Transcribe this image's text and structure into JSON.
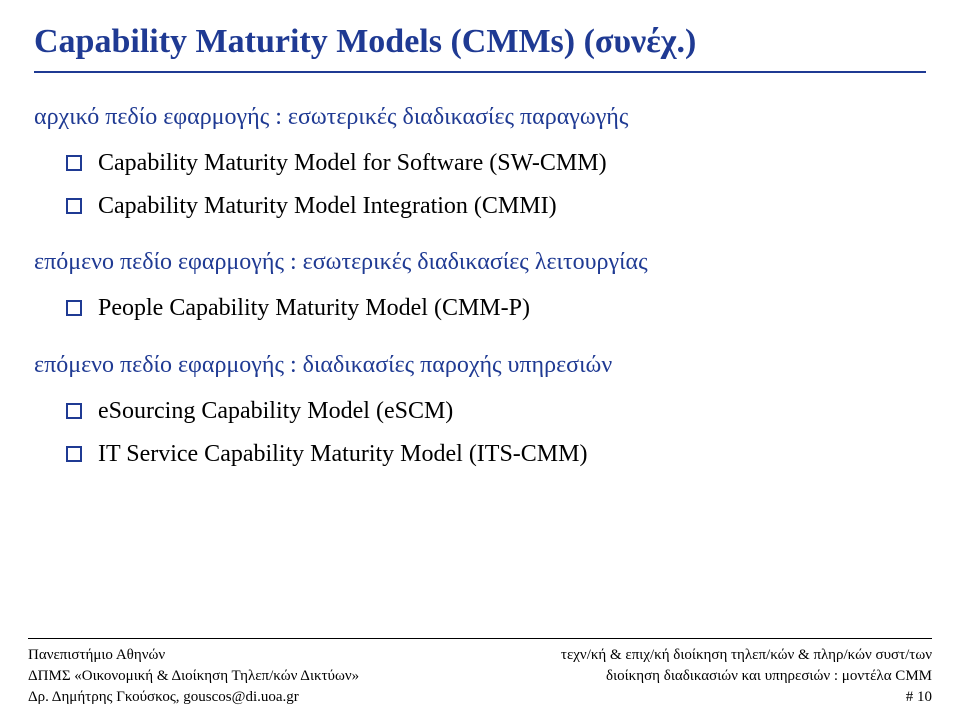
{
  "slide": {
    "title": "Capability Maturity Models (CMMs) (συνέχ.)",
    "title_color": "#1f3a93",
    "underline_color": "#1f3a93",
    "background_color": "#ffffff",
    "body_text_color": "#000000",
    "title_fontsize": 34,
    "intro_fontsize": 24,
    "bullet_fontsize": 24,
    "sections": [
      {
        "intro": "αρχικό πεδίο εφαρμογής : εσωτερικές διαδικασίες παραγωγής",
        "items": [
          "Capability Maturity Model for Software (SW-CMM)",
          "Capability Maturity Model Integration (CMMI)"
        ]
      },
      {
        "intro": "επόμενο πεδίο εφαρμογής : εσωτερικές διαδικασίες λειτουργίας",
        "items": [
          "People Capability Maturity Model (CMM-P)"
        ]
      },
      {
        "intro": "επόμενο πεδίο εφαρμογής : διαδικασίες παροχής υπηρεσιών",
        "items": [
          "eSourcing Capability Model (eSCM)",
          "IT Service Capability Maturity Model (ITS-CMM)"
        ]
      }
    ]
  },
  "footer": {
    "left_lines": [
      "Πανεπιστήμιο Αθηνών",
      "ΔΠΜΣ «Οικονομική & Διοίκηση Τηλεπ/κών Δικτύων»",
      "Δρ. Δημήτρης Γκούσκος, gouscos@di.uoa.gr"
    ],
    "right_lines": [
      "τεχν/κή & επιχ/κή διοίκηση τηλεπ/κών & πληρ/κών συστ/των",
      "διοίκηση διαδικασιών και υπηρεσιών : μοντέλα CMM",
      "# 10"
    ],
    "line_color": "#000000",
    "text_color": "#000000",
    "fontsize": 15
  }
}
